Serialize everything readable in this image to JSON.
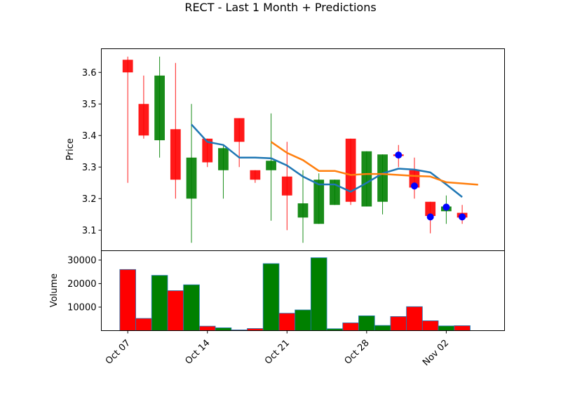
{
  "chart_data": {
    "type": "candlestick",
    "title": "RECT - Last 1 Month + Predictions",
    "price_panel": {
      "ylabel": "Price",
      "ylim": [
        3.035,
        3.675
      ],
      "yticks": [
        3.1,
        3.2,
        3.3,
        3.4,
        3.5,
        3.6
      ],
      "ytick_labels": [
        "3.1",
        "3.2",
        "3.3",
        "3.4",
        "3.5",
        "3.6"
      ]
    },
    "volume_panel": {
      "ylabel": "Volume",
      "ylim": [
        0,
        34000
      ],
      "yticks": [
        10000,
        20000,
        30000
      ],
      "ytick_labels": [
        "10000",
        "20000",
        "30000"
      ]
    },
    "xlim": [
      -1.66,
      23.66
    ],
    "xticks": [
      {
        "i": 0,
        "label": "Oct 07"
      },
      {
        "i": 5,
        "label": "Oct 14"
      },
      {
        "i": 10,
        "label": "Oct 21"
      },
      {
        "i": 15,
        "label": "Oct 28"
      },
      {
        "i": 20,
        "label": "Nov 02"
      }
    ],
    "candles": [
      {
        "date": "Oct 07",
        "open": 3.64,
        "high": 3.65,
        "low": 3.25,
        "close": 3.6,
        "volume": 26000
      },
      {
        "date": "Oct 08",
        "open": 3.5,
        "high": 3.59,
        "low": 3.39,
        "close": 3.4,
        "volume": 5200
      },
      {
        "date": "Oct 09",
        "open": 3.385,
        "high": 3.65,
        "low": 3.33,
        "close": 3.59,
        "volume": 23500
      },
      {
        "date": "Oct 10",
        "open": 3.42,
        "high": 3.63,
        "low": 3.2,
        "close": 3.26,
        "volume": 17000
      },
      {
        "date": "Oct 11",
        "open": 3.2,
        "high": 3.5,
        "low": 3.06,
        "close": 3.33,
        "volume": 19500
      },
      {
        "date": "Oct 14",
        "open": 3.39,
        "high": 3.39,
        "low": 3.3,
        "close": 3.315,
        "volume": 1900
      },
      {
        "date": "Oct 15",
        "open": 3.29,
        "high": 3.37,
        "low": 3.2,
        "close": 3.36,
        "volume": 1200
      },
      {
        "date": "Oct 16",
        "open": 3.455,
        "high": 3.455,
        "low": 3.3,
        "close": 3.38,
        "volume": 300
      },
      {
        "date": "Oct 17",
        "open": 3.29,
        "high": 3.29,
        "low": 3.25,
        "close": 3.26,
        "volume": 900
      },
      {
        "date": "Oct 18",
        "open": 3.29,
        "high": 3.47,
        "low": 3.13,
        "close": 3.32,
        "volume": 28500
      },
      {
        "date": "Oct 21",
        "open": 3.27,
        "high": 3.38,
        "low": 3.1,
        "close": 3.21,
        "volume": 7400
      },
      {
        "date": "Oct 22",
        "open": 3.14,
        "high": 3.29,
        "low": 3.06,
        "close": 3.185,
        "volume": 8800
      },
      {
        "date": "Oct 23",
        "open": 3.12,
        "high": 3.28,
        "low": 3.12,
        "close": 3.26,
        "volume": 31000
      },
      {
        "date": "Oct 24",
        "open": 3.18,
        "high": 3.26,
        "low": 3.18,
        "close": 3.26,
        "volume": 800
      },
      {
        "date": "Oct 25",
        "open": 3.39,
        "high": 3.39,
        "low": 3.18,
        "close": 3.19,
        "volume": 3300
      },
      {
        "date": "Oct 28",
        "open": 3.175,
        "high": 3.35,
        "low": 3.175,
        "close": 3.35,
        "volume": 6300
      },
      {
        "date": "Oct 29",
        "open": 3.19,
        "high": 3.34,
        "low": 3.15,
        "close": 3.34,
        "volume": 2200
      },
      {
        "date": "Oct 30",
        "open": 3.34,
        "high": 3.37,
        "low": 3.3,
        "close": 3.335,
        "volume": 6000
      },
      {
        "date": "Oct 31",
        "open": 3.29,
        "high": 3.33,
        "low": 3.2,
        "close": 3.235,
        "volume": 10200
      },
      {
        "date": "Nov 01",
        "open": 3.19,
        "high": 3.19,
        "low": 3.09,
        "close": 3.145,
        "volume": 4200
      },
      {
        "date": "Nov 02",
        "open": 3.16,
        "high": 3.21,
        "low": 3.12,
        "close": 3.175,
        "volume": 2000
      },
      {
        "date": "Nov 03",
        "open": 3.155,
        "high": 3.18,
        "low": 3.12,
        "close": 3.14,
        "volume": 2100
      }
    ],
    "moving_averages": [
      {
        "color": "#1f77b4",
        "start": 4,
        "values": [
          3.435,
          3.38,
          3.37,
          3.33,
          3.33,
          3.328,
          3.305,
          3.27,
          3.245,
          3.245,
          3.222,
          3.25,
          3.28,
          3.295,
          3.292,
          3.283,
          3.245,
          3.205
        ]
      },
      {
        "color": "#ff7f0e",
        "start": 9,
        "values": [
          3.38,
          3.345,
          3.322,
          3.288,
          3.288,
          3.275,
          3.278,
          3.278,
          3.275,
          3.272,
          3.27,
          3.252,
          3.248,
          3.244
        ]
      }
    ],
    "predictions": [
      {
        "i": 17,
        "value": 3.338
      },
      {
        "i": 18,
        "value": 3.24
      },
      {
        "i": 19,
        "value": 3.142
      },
      {
        "i": 20,
        "value": 3.173
      },
      {
        "i": 21,
        "value": 3.142
      }
    ],
    "colors": {
      "up": "#008000",
      "down": "#ff0000",
      "prediction": "#0000ff",
      "volume_edge": "#1f77b4"
    }
  }
}
